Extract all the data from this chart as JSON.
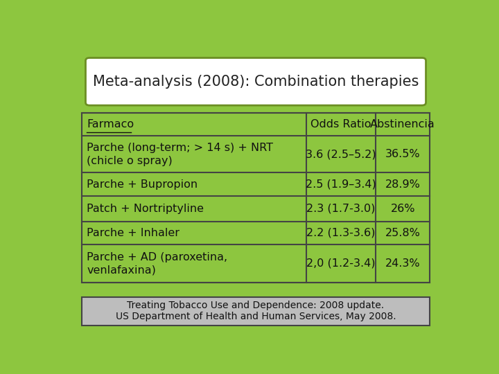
{
  "title": "Meta-analysis (2008): Combination therapies",
  "background_color": "#8DC63F",
  "title_box_color": "#FFFFFF",
  "table_bg_color": "#8DC63F",
  "header_row": [
    "Farmaco",
    "Odds Ratio",
    "Abstinencia"
  ],
  "rows": [
    [
      "Parche (long-term; > 14 s) + NRT\n(chicle o spray)",
      "3.6 (2.5–5.2)",
      "36.5%"
    ],
    [
      "Parche + Bupropion",
      "2.5 (1.9–3.4)",
      "28.9%"
    ],
    [
      "Patch + Nortriptyline",
      "2.3 (1.7-3.0)",
      "26%"
    ],
    [
      "Parche + Inhaler",
      "2.2 (1.3-3.6)",
      "25.8%"
    ],
    [
      "Parche + AD (paroxetina,\nvenlafaxina)",
      "2,0 (1.2-3.4)",
      "24.3%"
    ]
  ],
  "footer_line1": "Treating Tobacco Use and Dependence: 2008 update.",
  "footer_line2": "US Department of Health and Human Services, May 2008.",
  "footer_bg_color": "#BDBDBD",
  "border_color": "#6B8E23",
  "table_border_color": "#444444",
  "title_fontsize": 15,
  "table_fontsize": 11.5,
  "footer_fontsize": 10
}
